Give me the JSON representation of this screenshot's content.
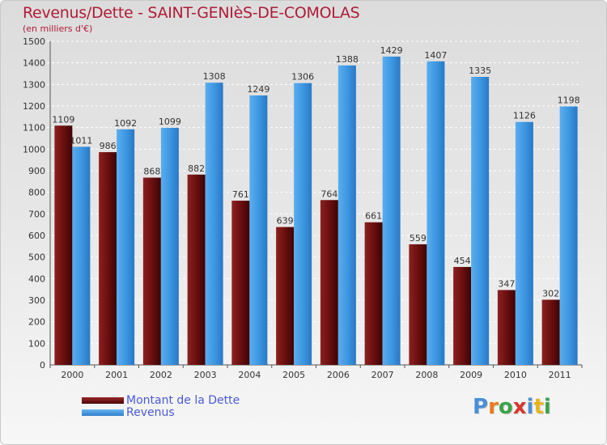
{
  "header": {
    "title": "Revenus/Dette - SAINT-GENIèS-DE-COMOLAS",
    "subtitle": "(en milliers d'€)"
  },
  "legend": {
    "items": [
      {
        "label": "Montant de la Dette",
        "color": "#6b0f0f"
      },
      {
        "label": "Revenus",
        "color": "#3b95e0"
      }
    ]
  },
  "brand": {
    "letters": [
      "P",
      "r",
      "o",
      "x",
      "i",
      "t",
      "i"
    ],
    "colors": [
      "#4a8fd8",
      "#e87a1e",
      "#3aa24a",
      "#d8362e",
      "#4a8fd8",
      "#e8b41e",
      "#3aa24a"
    ]
  },
  "chart_data": {
    "type": "bar",
    "categories": [
      "2000",
      "2001",
      "2002",
      "2003",
      "2004",
      "2005",
      "2006",
      "2007",
      "2008",
      "2009",
      "2010",
      "2011"
    ],
    "series": [
      {
        "name": "Montant de la Dette",
        "color": "#6b0f0f",
        "values": [
          1109,
          986,
          868,
          882,
          761,
          639,
          764,
          661,
          559,
          454,
          347,
          302
        ]
      },
      {
        "name": "Revenus",
        "color": "#3b95e0",
        "values": [
          1011,
          1092,
          1099,
          1308,
          1249,
          1306,
          1388,
          1429,
          1407,
          1335,
          1126,
          1198
        ]
      }
    ],
    "ylim": [
      0,
      1500
    ],
    "yticks": [
      0,
      100,
      200,
      300,
      400,
      500,
      600,
      700,
      800,
      900,
      1000,
      1100,
      1200,
      1300,
      1400,
      1500
    ],
    "grid": true,
    "legend_position": "bottom"
  }
}
